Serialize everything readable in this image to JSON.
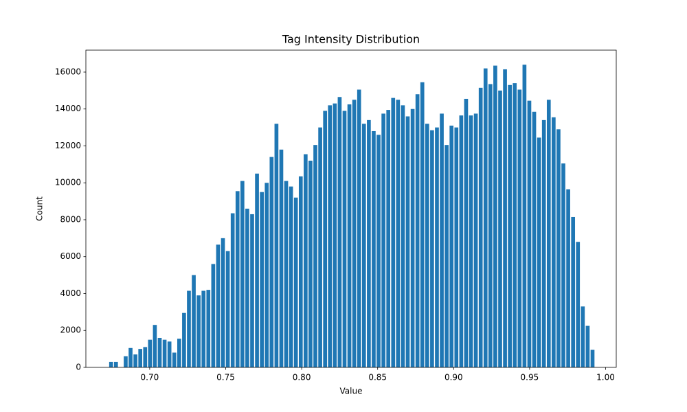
{
  "chart_data": {
    "type": "histogram",
    "title": "Tag Intensity Distribution",
    "x_label": "Value",
    "y_label": "Count",
    "color": "#1f77b4",
    "bins": [
      0.673,
      0.6762,
      0.6794,
      0.6826,
      0.6858,
      0.689,
      0.6922,
      0.6954,
      0.6986,
      0.7018,
      0.705,
      0.7082,
      0.7114,
      0.7146,
      0.7178,
      0.721,
      0.7242,
      0.7274,
      0.7306,
      0.7338,
      0.737,
      0.7402,
      0.7434,
      0.7466,
      0.7498,
      0.753,
      0.7562,
      0.7594,
      0.7626,
      0.7658,
      0.769,
      0.7722,
      0.7754,
      0.7786,
      0.7818,
      0.785,
      0.7882,
      0.7914,
      0.7946,
      0.7978,
      0.801,
      0.8042,
      0.8074,
      0.8106,
      0.8138,
      0.817,
      0.8202,
      0.8234,
      0.8266,
      0.8298,
      0.833,
      0.8362,
      0.8394,
      0.8426,
      0.8458,
      0.849,
      0.8522,
      0.8554,
      0.8586,
      0.8618,
      0.865,
      0.8682,
      0.8714,
      0.8746,
      0.8778,
      0.881,
      0.8842,
      0.8874,
      0.8906,
      0.8938,
      0.897,
      0.9002,
      0.9034,
      0.9066,
      0.9098,
      0.913,
      0.9162,
      0.9194,
      0.9226,
      0.9258,
      0.929,
      0.9322,
      0.9354,
      0.9386,
      0.9418,
      0.945,
      0.9482,
      0.9514,
      0.9546,
      0.9578,
      0.961,
      0.9642,
      0.9674,
      0.9706,
      0.9738,
      0.977,
      0.9802,
      0.9834,
      0.9866,
      0.9898,
      0.993
    ],
    "values": [
      300,
      300,
      0,
      600,
      1050,
      700,
      1000,
      1100,
      1500,
      2300,
      1600,
      1500,
      1400,
      800,
      1550,
      2950,
      4150,
      5000,
      3900,
      4150,
      4200,
      5600,
      6650,
      7000,
      6300,
      8350,
      9550,
      10100,
      8600,
      8300,
      10500,
      9500,
      10000,
      11400,
      13200,
      11800,
      10100,
      9800,
      9200,
      10350,
      11550,
      11200,
      12050,
      13000,
      13900,
      14200,
      14300,
      14650,
      13900,
      14250,
      14500,
      15050,
      13200,
      13400,
      12800,
      12600,
      13750,
      13950,
      14600,
      14500,
      14200,
      13600,
      14000,
      14800,
      15450,
      13200,
      12850,
      13000,
      13750,
      12050,
      13100,
      13000,
      13650,
      14550,
      13650,
      13750,
      15150,
      16200,
      15350,
      16350,
      15000,
      16150,
      15300,
      15400,
      15050,
      16400,
      14450,
      13850,
      12450,
      13400,
      14500,
      13550,
      12900,
      11050,
      9650,
      8150,
      6800,
      3300,
      2250,
      950
    ],
    "xlim": [
      0.658,
      1.007
    ],
    "ylim": [
      0,
      17190
    ],
    "xticks": [
      {
        "value": 0.7,
        "label": "0.70"
      },
      {
        "value": 0.75,
        "label": "0.75"
      },
      {
        "value": 0.8,
        "label": "0.80"
      },
      {
        "value": 0.85,
        "label": "0.85"
      },
      {
        "value": 0.9,
        "label": "0.90"
      },
      {
        "value": 0.95,
        "label": "0.95"
      },
      {
        "value": 1.0,
        "label": "1.00"
      }
    ],
    "yticks": [
      0,
      2000,
      4000,
      6000,
      8000,
      10000,
      12000,
      14000,
      16000
    ]
  }
}
